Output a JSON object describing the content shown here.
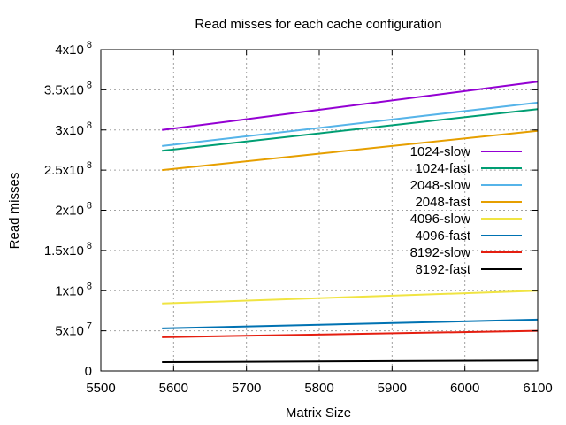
{
  "chart_data": {
    "type": "line",
    "title": "Read misses for each cache configuration",
    "xlabel": "Matrix Size",
    "ylabel": "Read misses",
    "xlim": [
      5500,
      6100
    ],
    "ylim": [
      0,
      400000000
    ],
    "x_ticks": [
      {
        "value": 5500,
        "label": "5500"
      },
      {
        "value": 5600,
        "label": "5600"
      },
      {
        "value": 5700,
        "label": "5700"
      },
      {
        "value": 5800,
        "label": "5800"
      },
      {
        "value": 5900,
        "label": "5900"
      },
      {
        "value": 6000,
        "label": "6000"
      },
      {
        "value": 6100,
        "label": "6100"
      }
    ],
    "y_ticks": [
      {
        "value": 0,
        "mantissa": "0",
        "exponent": ""
      },
      {
        "value": 50000000,
        "mantissa": "5x10",
        "exponent": "7"
      },
      {
        "value": 100000000,
        "mantissa": "1x10",
        "exponent": "8"
      },
      {
        "value": 150000000,
        "mantissa": "1.5x10",
        "exponent": "8"
      },
      {
        "value": 200000000,
        "mantissa": "2x10",
        "exponent": "8"
      },
      {
        "value": 250000000,
        "mantissa": "2.5x10",
        "exponent": "8"
      },
      {
        "value": 300000000,
        "mantissa": "3x10",
        "exponent": "8"
      },
      {
        "value": 350000000,
        "mantissa": "3.5x10",
        "exponent": "8"
      },
      {
        "value": 400000000,
        "mantissa": "4x10",
        "exponent": "8"
      }
    ],
    "grid": true,
    "legend_position": "right",
    "series": [
      {
        "name": "1024-slow",
        "color": "#9400d3",
        "x": [
          5584,
          6100
        ],
        "y": [
          300000000,
          360000000
        ]
      },
      {
        "name": "1024-fast",
        "color": "#009e73",
        "x": [
          5584,
          6100
        ],
        "y": [
          274000000,
          326000000
        ]
      },
      {
        "name": "2048-slow",
        "color": "#56b4e9",
        "x": [
          5584,
          6100
        ],
        "y": [
          280000000,
          334000000
        ]
      },
      {
        "name": "2048-fast",
        "color": "#e69f00",
        "x": [
          5584,
          6100
        ],
        "y": [
          250000000,
          299000000
        ]
      },
      {
        "name": "4096-slow",
        "color": "#f0e442",
        "x": [
          5584,
          6100
        ],
        "y": [
          84000000,
          100000000
        ]
      },
      {
        "name": "4096-fast",
        "color": "#0072b2",
        "x": [
          5584,
          6100
        ],
        "y": [
          53000000,
          64000000
        ]
      },
      {
        "name": "8192-slow",
        "color": "#e51e10",
        "x": [
          5584,
          6100
        ],
        "y": [
          42000000,
          50000000
        ]
      },
      {
        "name": "8192-fast",
        "color": "#000000",
        "x": [
          5584,
          6100
        ],
        "y": [
          11000000,
          13000000
        ]
      }
    ]
  }
}
